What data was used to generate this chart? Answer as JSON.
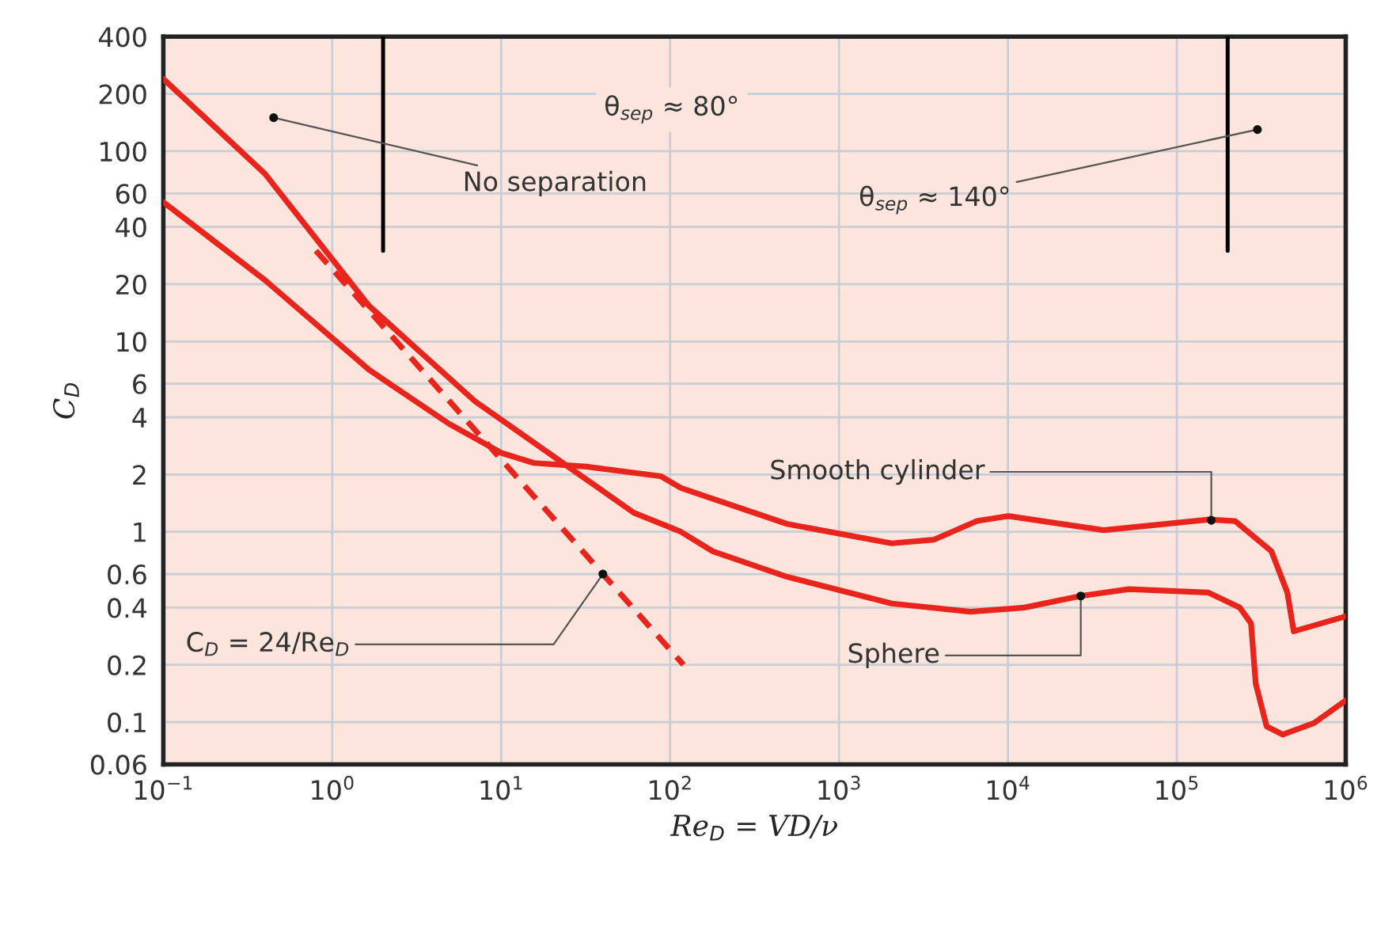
{
  "chart_data": {
    "type": "line",
    "xlabel": "Re$_{D}$ = VD/ν",
    "ylabel": "C$_{D}$",
    "log": "xy",
    "grid": true,
    "marker": "none",
    "xlim": [
      0.1,
      1000000
    ],
    "ylim": [
      0.06,
      400
    ],
    "xticks": [
      {
        "value": 0.1,
        "label": "10$^{−1}$"
      },
      {
        "value": 1,
        "label": "10$^{0}$"
      },
      {
        "value": 10,
        "label": "10$^{1}$"
      },
      {
        "value": 100,
        "label": "10$^{2}$"
      },
      {
        "value": 1000,
        "label": "10$^{3}$"
      },
      {
        "value": 10000,
        "label": "10$^{4}$"
      },
      {
        "value": 100000,
        "label": "10$^{5}$"
      },
      {
        "value": 1000000,
        "label": "10$^{6}$"
      }
    ],
    "yticks": [
      0.06,
      0.1,
      0.2,
      0.4,
      0.6,
      1,
      2,
      4,
      6,
      10,
      20,
      40,
      60,
      100,
      200,
      400
    ],
    "series": [
      {
        "color": "#e8241c",
        "line_style": "solid",
        "x": [
          0.1,
          0.4,
          1.65,
          7,
          30,
          61,
          116,
          179,
          493,
          2050,
          6000,
          12500,
          27000,
          52000,
          153000,
          236000,
          275000,
          293000,
          340000,
          423000,
          650000,
          1000000
        ],
        "values": [
          240,
          76,
          15.4,
          4.85,
          1.96,
          1.26,
          1.0,
          0.79,
          0.58,
          0.42,
          0.38,
          0.4,
          0.46,
          0.5,
          0.48,
          0.4,
          0.33,
          0.16,
          0.095,
          0.086,
          0.099,
          0.13
        ]
      },
      {
        "color": "#e8241c",
        "line_style": "solid",
        "x": [
          0.1,
          0.4,
          1.65,
          4.9,
          10,
          15.6,
          32,
          88,
          116,
          493,
          2050,
          3660,
          6560,
          10100,
          36900,
          153000,
          221000,
          363000,
          451000,
          492000,
          1000000
        ],
        "values": [
          54,
          21,
          7.1,
          3.7,
          2.6,
          2.3,
          2.2,
          1.96,
          1.7,
          1.1,
          0.87,
          0.91,
          1.14,
          1.21,
          1.02,
          1.16,
          1.14,
          0.79,
          0.48,
          0.3,
          0.36
        ]
      },
      {
        "color": "#e8241c",
        "line_style": "dashed",
        "x": [
          0.8,
          120
        ],
        "values": [
          30,
          0.2
        ]
      },
      {
        "color": "#000000",
        "line_style": "solid",
        "x": [
          2,
          2
        ],
        "values": [
          400,
          30
        ]
      },
      {
        "color": "#000000",
        "line_style": "solid",
        "x": [
          200000,
          200000
        ],
        "values": [
          400,
          30
        ]
      }
    ],
    "annotations": [
      {
        "text": "No separation",
        "x": 0.45,
        "y": 150
      },
      "θ$_{sep}$ ≈ 80°",
      {
        "text": "θ$_{sep}$ ≈ 140°",
        "x": 300000,
        "y": 130
      },
      {
        "text": "Smooth cylinder",
        "x": 160000,
        "y": 1.15
      },
      {
        "text": "Sphere",
        "x": 27000,
        "y": 0.46
      },
      {
        "text": "C$_{D}$ = 24/Re$_{D}$",
        "x": 40,
        "y": 0.6
      }
    ]
  }
}
